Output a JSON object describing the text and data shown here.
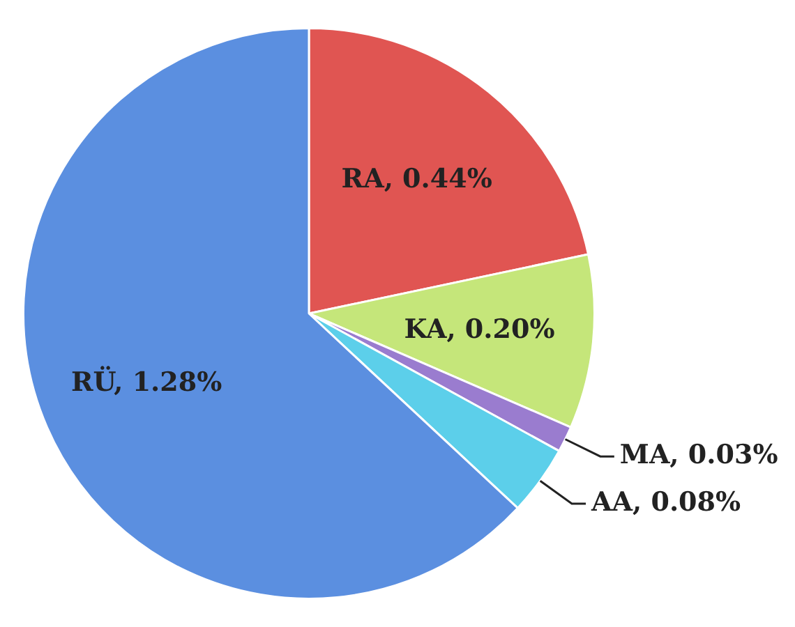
{
  "chart_data": {
    "type": "pie",
    "categories": [
      "RA",
      "KA",
      "MA",
      "AA",
      "RÜ"
    ],
    "values": [
      0.44,
      0.2,
      0.03,
      0.08,
      1.28
    ],
    "colors": [
      "#e05552",
      "#c5e67a",
      "#9a7ccf",
      "#5ccfea",
      "#5b8fe0"
    ],
    "value_labels": [
      "0.44%",
      "0.20%",
      "0.03%",
      "0.08%",
      "1.28%"
    ],
    "legend": false
  }
}
